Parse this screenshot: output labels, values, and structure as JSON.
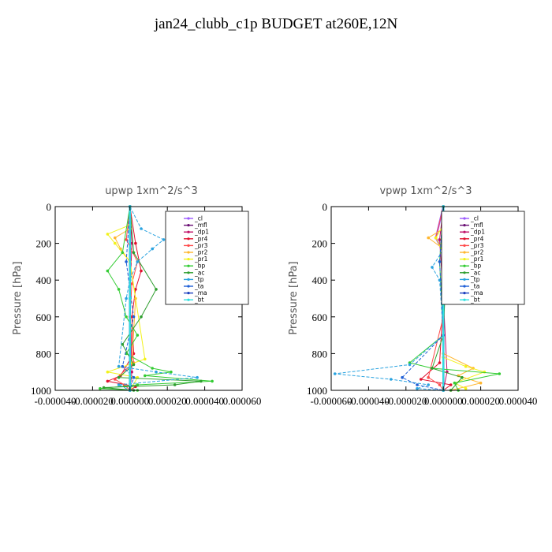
{
  "figure": {
    "title": "jan24_clubb_c1p  BUDGET at260E,12N"
  },
  "legend_entries": [
    {
      "name": "_cl",
      "color": "#9b59ff"
    },
    {
      "name": "_mfl",
      "color": "#6a0f74"
    },
    {
      "name": "_dp1",
      "color": "#c0136a"
    },
    {
      "name": "_pr4",
      "color": "#e0102e"
    },
    {
      "name": "_pr3",
      "color": "#ff4a4a"
    },
    {
      "name": "_pr2",
      "color": "#ffb62e"
    },
    {
      "name": "_pr1",
      "color": "#f2f21a"
    },
    {
      "name": "_bp",
      "color": "#33cc33"
    },
    {
      "name": "_ac",
      "color": "#2e9e2e"
    },
    {
      "name": "_tp",
      "color": "#2aa3e0"
    },
    {
      "name": "_ta",
      "color": "#1f5fd6"
    },
    {
      "name": "_ma",
      "color": "#1b3fbf"
    },
    {
      "name": "_bt",
      "color": "#2ee0e0"
    }
  ],
  "chart_data": [
    {
      "type": "line",
      "title": "upwp   1xm^2/s^3",
      "ylabel": "Pressure [hPa]",
      "xlim": [
        -4e-05,
        6e-05
      ],
      "ylim": [
        1000,
        0
      ],
      "xticks": [
        "-0.000040",
        "-0.000020",
        "0.000000",
        "0.000020",
        "0.000040",
        "0.000060"
      ],
      "xtick_values": [
        -4e-05,
        -2e-05,
        0,
        2e-05,
        4e-05,
        6e-05
      ],
      "yticks": [
        "0",
        "200",
        "400",
        "600",
        "800",
        "1000"
      ],
      "ytick_values": [
        0,
        200,
        400,
        600,
        800,
        1000
      ],
      "grid": false,
      "legend_position": "top-right",
      "series": [
        {
          "name": "_cl",
          "x": [
            0,
            0,
            0
          ],
          "y": [
            0,
            500,
            1000
          ]
        },
        {
          "name": "_mfl",
          "x": [
            0,
            0,
            0
          ],
          "y": [
            0,
            500,
            1000
          ]
        },
        {
          "name": "_dp1",
          "x": [
            0,
            1e-06,
            0,
            1e-06,
            0
          ],
          "y": [
            0,
            200,
            500,
            900,
            1000
          ]
        },
        {
          "name": "_pr4",
          "x": [
            0,
            3e-06,
            6e-06,
            3e-06,
            1e-06,
            2e-06,
            -5e-06,
            -1.2e-05,
            3e-06,
            0
          ],
          "y": [
            0,
            200,
            350,
            450,
            600,
            800,
            920,
            950,
            980,
            1000
          ]
        },
        {
          "name": "_pr3",
          "x": [
            0,
            -2e-06,
            4e-06,
            1e-06,
            0,
            2e-06,
            -8e-06,
            -3e-06,
            0
          ],
          "y": [
            0,
            180,
            300,
            420,
            600,
            850,
            940,
            970,
            1000
          ]
        },
        {
          "name": "_pr2",
          "x": [
            0,
            -8e-06,
            -5e-06,
            0,
            3e-06,
            1e-06
          ],
          "y": [
            120,
            170,
            230,
            300,
            500,
            850
          ]
        },
        {
          "name": "_pr1",
          "x": [
            0,
            -1.2e-05,
            -8e-06,
            0,
            8e-06,
            -1.2e-05,
            4e-06,
            0
          ],
          "y": [
            100,
            150,
            200,
            300,
            830,
            900,
            930,
            1000
          ]
        },
        {
          "name": "_bp",
          "x": [
            0,
            -4e-06,
            -1.2e-05,
            -6e-06,
            -2e-06,
            4e-06,
            -2e-06,
            1.2e-05,
            2.2e-05,
            8e-06,
            4.4e-05,
            4e-06,
            -1.6e-05,
            4e-06
          ],
          "y": [
            0,
            250,
            350,
            450,
            600,
            700,
            800,
            880,
            900,
            920,
            950,
            970,
            990,
            1000
          ]
        },
        {
          "name": "_ac",
          "x": [
            0,
            2e-06,
            1.4e-05,
            6e-06,
            -4e-06,
            2e-06,
            -6e-06,
            3.8e-05,
            2.4e-05,
            -1.4e-05,
            2e-06
          ],
          "y": [
            0,
            250,
            450,
            600,
            750,
            860,
            930,
            950,
            970,
            985,
            1000
          ]
        },
        {
          "name": "_tp",
          "x": [
            0,
            6e-06,
            1.8e-05,
            1.2e-05,
            4e-06,
            0,
            -2e-06,
            -6e-06,
            1.4e-05,
            3.6e-05,
            -6e-06,
            0
          ],
          "y": [
            0,
            120,
            180,
            230,
            300,
            400,
            500,
            870,
            900,
            930,
            970,
            1000
          ]
        },
        {
          "name": "_ta",
          "x": [
            0,
            -2e-06,
            2e-06,
            -4e-06,
            2e-06,
            0
          ],
          "y": [
            0,
            300,
            600,
            870,
            930,
            1000
          ]
        },
        {
          "name": "_ma",
          "x": [
            0,
            0,
            0
          ],
          "y": [
            0,
            500,
            1000
          ]
        },
        {
          "name": "_bt",
          "x": [
            0,
            0,
            0
          ],
          "y": [
            0,
            500,
            1000
          ]
        }
      ]
    },
    {
      "type": "line",
      "title": "vpwp   1xm^2/s^3",
      "ylabel": "Pressure [hPa]",
      "xlim": [
        -6e-05,
        4e-05
      ],
      "ylim": [
        1000,
        0
      ],
      "xticks": [
        "-0.000060",
        "-0.000040",
        "-0.000020",
        "0.000000",
        "0.000020",
        "0.000040"
      ],
      "xtick_values": [
        -6e-05,
        -4e-05,
        -2e-05,
        0,
        2e-05,
        4e-05
      ],
      "yticks": [
        "0",
        "200",
        "400",
        "600",
        "800",
        "1000"
      ],
      "ytick_values": [
        0,
        200,
        400,
        600,
        800,
        1000
      ],
      "grid": false,
      "legend_position": "top-right",
      "series": [
        {
          "name": "_cl",
          "x": [
            0,
            -4e-06,
            0,
            0
          ],
          "y": [
            0,
            170,
            250,
            1000
          ]
        },
        {
          "name": "_mfl",
          "x": [
            0,
            0,
            0
          ],
          "y": [
            0,
            500,
            1000
          ]
        },
        {
          "name": "_dp1",
          "x": [
            0,
            -2e-06,
            0,
            2e-06,
            0
          ],
          "y": [
            0,
            180,
            500,
            900,
            1000
          ]
        },
        {
          "name": "_pr4",
          "x": [
            0,
            2e-06,
            0,
            -2e-06,
            -1.2e-05,
            4e-06,
            0
          ],
          "y": [
            0,
            200,
            500,
            850,
            940,
            970,
            1000
          ]
        },
        {
          "name": "_pr3",
          "x": [
            0,
            -4e-06,
            0,
            0,
            -8e-06,
            -2e-06,
            0
          ],
          "y": [
            0,
            170,
            250,
            600,
            930,
            970,
            1000
          ]
        },
        {
          "name": "_pr2",
          "x": [
            0,
            -8e-06,
            0,
            0,
            1.6e-05,
            8e-06,
            2e-05,
            4e-06
          ],
          "y": [
            120,
            170,
            230,
            800,
            880,
            920,
            960,
            1000
          ]
        },
        {
          "name": "_pr1",
          "x": [
            0,
            -4e-06,
            0,
            0,
            1.2e-05,
            2.2e-05,
            6e-06,
            1.2e-05
          ],
          "y": [
            100,
            170,
            250,
            820,
            870,
            900,
            960,
            990
          ]
        },
        {
          "name": "_bp",
          "x": [
            0,
            -2e-06,
            0,
            -1.8e-05,
            -6e-06,
            3e-05,
            6e-06,
            8e-06
          ],
          "y": [
            0,
            300,
            700,
            850,
            880,
            910,
            960,
            1000
          ]
        },
        {
          "name": "_ac",
          "x": [
            0,
            2e-06,
            0,
            -6e-06,
            1e-05,
            4e-06
          ],
          "y": [
            0,
            200,
            700,
            880,
            930,
            1000
          ]
        },
        {
          "name": "_tp",
          "x": [
            0,
            4e-06,
            -6e-06,
            -2e-06,
            0,
            -1.8e-05,
            -5.8e-05,
            -2.8e-05,
            -8e-06,
            -1.4e-05,
            0
          ],
          "y": [
            0,
            170,
            330,
            400,
            700,
            860,
            910,
            940,
            970,
            990,
            1000
          ]
        },
        {
          "name": "_ta",
          "x": [
            0,
            -2e-06,
            0,
            -2.2e-05,
            -1.4e-05,
            0
          ],
          "y": [
            0,
            300,
            700,
            930,
            970,
            1000
          ]
        },
        {
          "name": "_ma",
          "x": [
            0,
            0,
            0
          ],
          "y": [
            0,
            500,
            1000
          ]
        },
        {
          "name": "_bt",
          "x": [
            0,
            0,
            0
          ],
          "y": [
            0,
            500,
            1000
          ]
        }
      ]
    }
  ]
}
